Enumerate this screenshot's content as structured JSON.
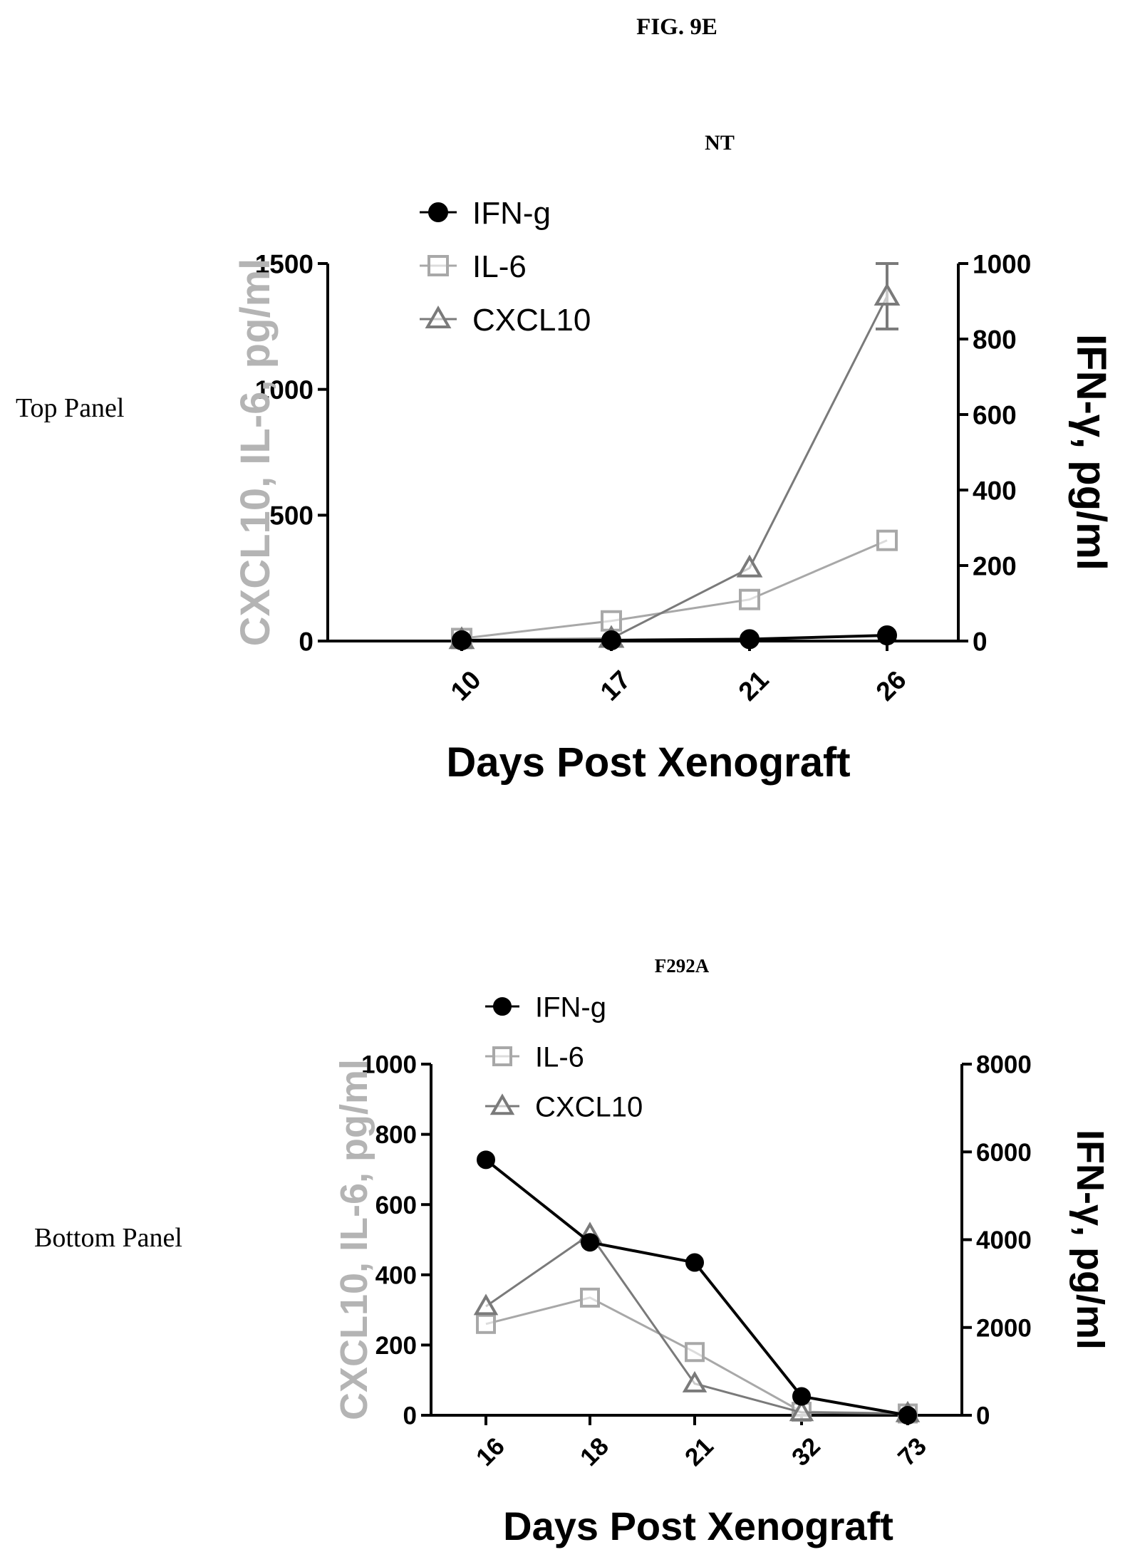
{
  "figure_label": "FIG. 9E",
  "panel_labels": [
    "Top Panel",
    "Bottom Panel"
  ],
  "colors": {
    "ifn": "#000000",
    "il6": "#a8a8a8",
    "cxcl10": "#7a7a7a",
    "left_axis_label": "#b4b4b4",
    "axis": "#000000"
  },
  "legend_icons": [
    "filled-circle",
    "open-square",
    "open-triangle"
  ],
  "chart_data": [
    {
      "type": "line",
      "title": "NT",
      "xlabel": "Days Post Xenograft",
      "ylabel_left": "CXCL10, IL-6, pg/ml",
      "ylabel_right": "IFN-γ, pg/ml",
      "categories": [
        "10",
        "17",
        "21",
        "26"
      ],
      "ylim_left": [
        0,
        1500
      ],
      "yticks_left": [
        "0",
        "500",
        "1000",
        "1500"
      ],
      "ylim_right": [
        0,
        1000
      ],
      "yticks_right": [
        "0",
        "200",
        "400",
        "600",
        "800",
        "1000"
      ],
      "grid": false,
      "legend_position": "top-left",
      "series": [
        {
          "name": "IFN-g",
          "axis": "right",
          "marker": "circle",
          "values": [
            2,
            2,
            5,
            15
          ]
        },
        {
          "name": "IL-6",
          "axis": "left",
          "marker": "square",
          "values": [
            10,
            80,
            165,
            400
          ]
        },
        {
          "name": "CXCL10",
          "axis": "left",
          "marker": "triangle",
          "values": [
            5,
            10,
            290,
            1370
          ],
          "error": [
            0,
            0,
            0,
            130
          ]
        }
      ]
    },
    {
      "type": "line",
      "title": "F292A",
      "xlabel": "Days Post Xenograft",
      "ylabel_left": "CXCL10, IL-6, pg/ml",
      "ylabel_right": "IFN-γ, pg/ml",
      "categories": [
        "16",
        "18",
        "21",
        "32",
        "73"
      ],
      "ylim_left": [
        0,
        1000
      ],
      "yticks_left": [
        "0",
        "200",
        "400",
        "600",
        "800",
        "1000"
      ],
      "ylim_right": [
        0,
        8000
      ],
      "yticks_right": [
        "0",
        "2000",
        "4000",
        "6000",
        "8000"
      ],
      "grid": false,
      "legend_position": "top-left",
      "series": [
        {
          "name": "IFN-g",
          "axis": "right",
          "marker": "circle",
          "values": [
            5820,
            3940,
            3480,
            430,
            0
          ]
        },
        {
          "name": "IL-6",
          "axis": "left",
          "marker": "square",
          "values": [
            260,
            335,
            180,
            10,
            5
          ]
        },
        {
          "name": "CXCL10",
          "axis": "left",
          "marker": "triangle",
          "values": [
            310,
            515,
            90,
            8,
            5
          ]
        }
      ]
    }
  ]
}
